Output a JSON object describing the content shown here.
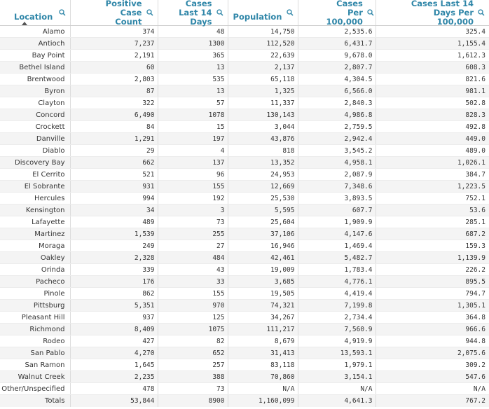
{
  "colors": {
    "header_text": "#2f86a8",
    "stripe": "#f4f4f4"
  },
  "headers": [
    {
      "label": "Location",
      "icon": "search-icon",
      "sorted": "ascending"
    },
    {
      "label": "Positive Case Count",
      "icon": "search-icon"
    },
    {
      "label": "Cases Last 14 Days",
      "icon": "search-icon"
    },
    {
      "label": "Population",
      "icon": "search-icon"
    },
    {
      "label": "Cases Per 100,000",
      "icon": "search-icon"
    },
    {
      "label": "Cases Last 14 Days Per 100,000",
      "icon": "search-icon"
    }
  ],
  "rows": [
    [
      "Alamo",
      "374",
      "48",
      "14,750",
      "2,535.6",
      "325.4"
    ],
    [
      "Antioch",
      "7,237",
      "1300",
      "112,520",
      "6,431.7",
      "1,155.4"
    ],
    [
      "Bay Point",
      "2,191",
      "365",
      "22,639",
      "9,678.0",
      "1,612.3"
    ],
    [
      "Bethel Island",
      "60",
      "13",
      "2,137",
      "2,807.7",
      "608.3"
    ],
    [
      "Brentwood",
      "2,803",
      "535",
      "65,118",
      "4,304.5",
      "821.6"
    ],
    [
      "Byron",
      "87",
      "13",
      "1,325",
      "6,566.0",
      "981.1"
    ],
    [
      "Clayton",
      "322",
      "57",
      "11,337",
      "2,840.3",
      "502.8"
    ],
    [
      "Concord",
      "6,490",
      "1078",
      "130,143",
      "4,986.8",
      "828.3"
    ],
    [
      "Crockett",
      "84",
      "15",
      "3,044",
      "2,759.5",
      "492.8"
    ],
    [
      "Danville",
      "1,291",
      "197",
      "43,876",
      "2,942.4",
      "449.0"
    ],
    [
      "Diablo",
      "29",
      "4",
      "818",
      "3,545.2",
      "489.0"
    ],
    [
      "Discovery Bay",
      "662",
      "137",
      "13,352",
      "4,958.1",
      "1,026.1"
    ],
    [
      "El Cerrito",
      "521",
      "96",
      "24,953",
      "2,087.9",
      "384.7"
    ],
    [
      "El Sobrante",
      "931",
      "155",
      "12,669",
      "7,348.6",
      "1,223.5"
    ],
    [
      "Hercules",
      "994",
      "192",
      "25,530",
      "3,893.5",
      "752.1"
    ],
    [
      "Kensington",
      "34",
      "3",
      "5,595",
      "607.7",
      "53.6"
    ],
    [
      "Lafayette",
      "489",
      "73",
      "25,604",
      "1,909.9",
      "285.1"
    ],
    [
      "Martinez",
      "1,539",
      "255",
      "37,106",
      "4,147.6",
      "687.2"
    ],
    [
      "Moraga",
      "249",
      "27",
      "16,946",
      "1,469.4",
      "159.3"
    ],
    [
      "Oakley",
      "2,328",
      "484",
      "42,461",
      "5,482.7",
      "1,139.9"
    ],
    [
      "Orinda",
      "339",
      "43",
      "19,009",
      "1,783.4",
      "226.2"
    ],
    [
      "Pacheco",
      "176",
      "33",
      "3,685",
      "4,776.1",
      "895.5"
    ],
    [
      "Pinole",
      "862",
      "155",
      "19,505",
      "4,419.4",
      "794.7"
    ],
    [
      "Pittsburg",
      "5,351",
      "970",
      "74,321",
      "7,199.8",
      "1,305.1"
    ],
    [
      "Pleasant Hill",
      "937",
      "125",
      "34,267",
      "2,734.4",
      "364.8"
    ],
    [
      "Richmond",
      "8,409",
      "1075",
      "111,217",
      "7,560.9",
      "966.6"
    ],
    [
      "Rodeo",
      "427",
      "82",
      "8,679",
      "4,919.9",
      "944.8"
    ],
    [
      "San Pablo",
      "4,270",
      "652",
      "31,413",
      "13,593.1",
      "2,075.6"
    ],
    [
      "San Ramon",
      "1,645",
      "257",
      "83,118",
      "1,979.1",
      "309.2"
    ],
    [
      "Walnut Creek",
      "2,235",
      "388",
      "70,860",
      "3,154.1",
      "547.6"
    ],
    [
      "Other/Unspecified",
      "478",
      "73",
      "N/A",
      "N/A",
      "N/A"
    ]
  ],
  "totals": [
    "Totals",
    "53,844",
    "8900",
    "1,160,099",
    "4,641.3",
    "767.2"
  ]
}
